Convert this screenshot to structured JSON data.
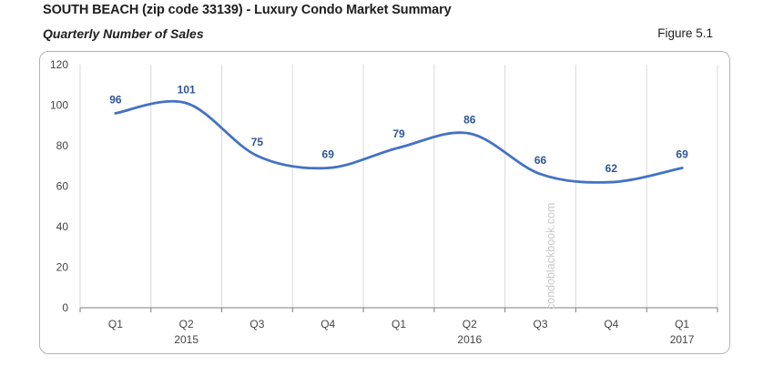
{
  "header": {
    "title": "SOUTH BEACH (zip code 33139) - Luxury Condo Market Summary",
    "subtitle": "Quarterly Number of Sales",
    "figure": "Figure 5.1"
  },
  "watermark": "condoblackbook.com",
  "colors": {
    "line": "#4472c4",
    "label": "#2f5597",
    "grid": "#d9d9d9",
    "axis": "#7f7f7f"
  },
  "chart_data": {
    "type": "line",
    "title": "Quarterly Number of Sales",
    "categories": [
      "Q1",
      "Q2",
      "Q3",
      "Q4",
      "Q1",
      "Q2",
      "Q3",
      "Q4",
      "Q1"
    ],
    "year_labels": [
      "",
      "2015",
      "",
      "",
      "",
      "2016",
      "",
      "",
      "2017"
    ],
    "series": [
      {
        "name": "Number of Sales",
        "values": [
          96,
          101,
          75,
          69,
          79,
          86,
          66,
          62,
          69
        ]
      }
    ],
    "data_labels": [
      "96",
      "101",
      "75",
      "69",
      "79",
      "86",
      "66",
      "62",
      "69"
    ],
    "ylim": [
      0,
      120
    ],
    "yticks": [
      0,
      20,
      40,
      60,
      80,
      100,
      120
    ],
    "grid": true,
    "xlabel": "",
    "ylabel": ""
  }
}
